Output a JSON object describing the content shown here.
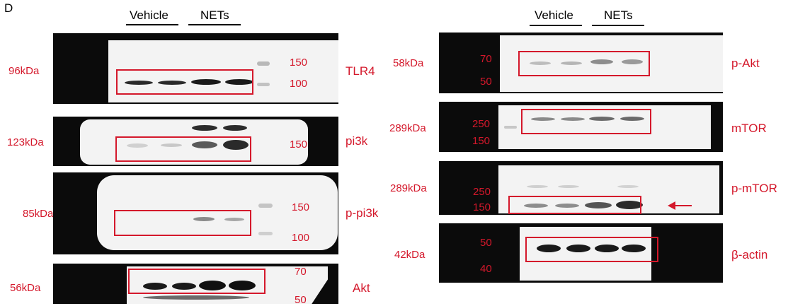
{
  "panel_letter": "D",
  "group_labels": {
    "vehicle": "Vehicle",
    "nets": "NETs"
  },
  "accent_color": "#d4182b",
  "left_blots": [
    {
      "kda": "96kDa",
      "protein": "TLR4",
      "markers": [
        "150",
        "100"
      ]
    },
    {
      "kda": "123kDa",
      "protein": "pi3k",
      "markers": [
        "150"
      ]
    },
    {
      "kda": "85kDa",
      "protein": "p-pi3k",
      "markers": [
        "150",
        "100"
      ]
    },
    {
      "kda": "56kDa",
      "protein": "Akt",
      "markers": [
        "70",
        "50"
      ]
    }
  ],
  "right_blots": [
    {
      "kda": "58kDa",
      "protein": "p-Akt",
      "markers": [
        "70",
        "50"
      ]
    },
    {
      "kda": "289kDa",
      "protein": "mTOR",
      "markers": [
        "250",
        "150"
      ]
    },
    {
      "kda": "289kDa",
      "protein": "p-mTOR",
      "markers": [
        "250",
        "150"
      ]
    },
    {
      "kda": "42kDa",
      "protein": "β-actin",
      "markers": [
        "50",
        "40"
      ]
    }
  ]
}
